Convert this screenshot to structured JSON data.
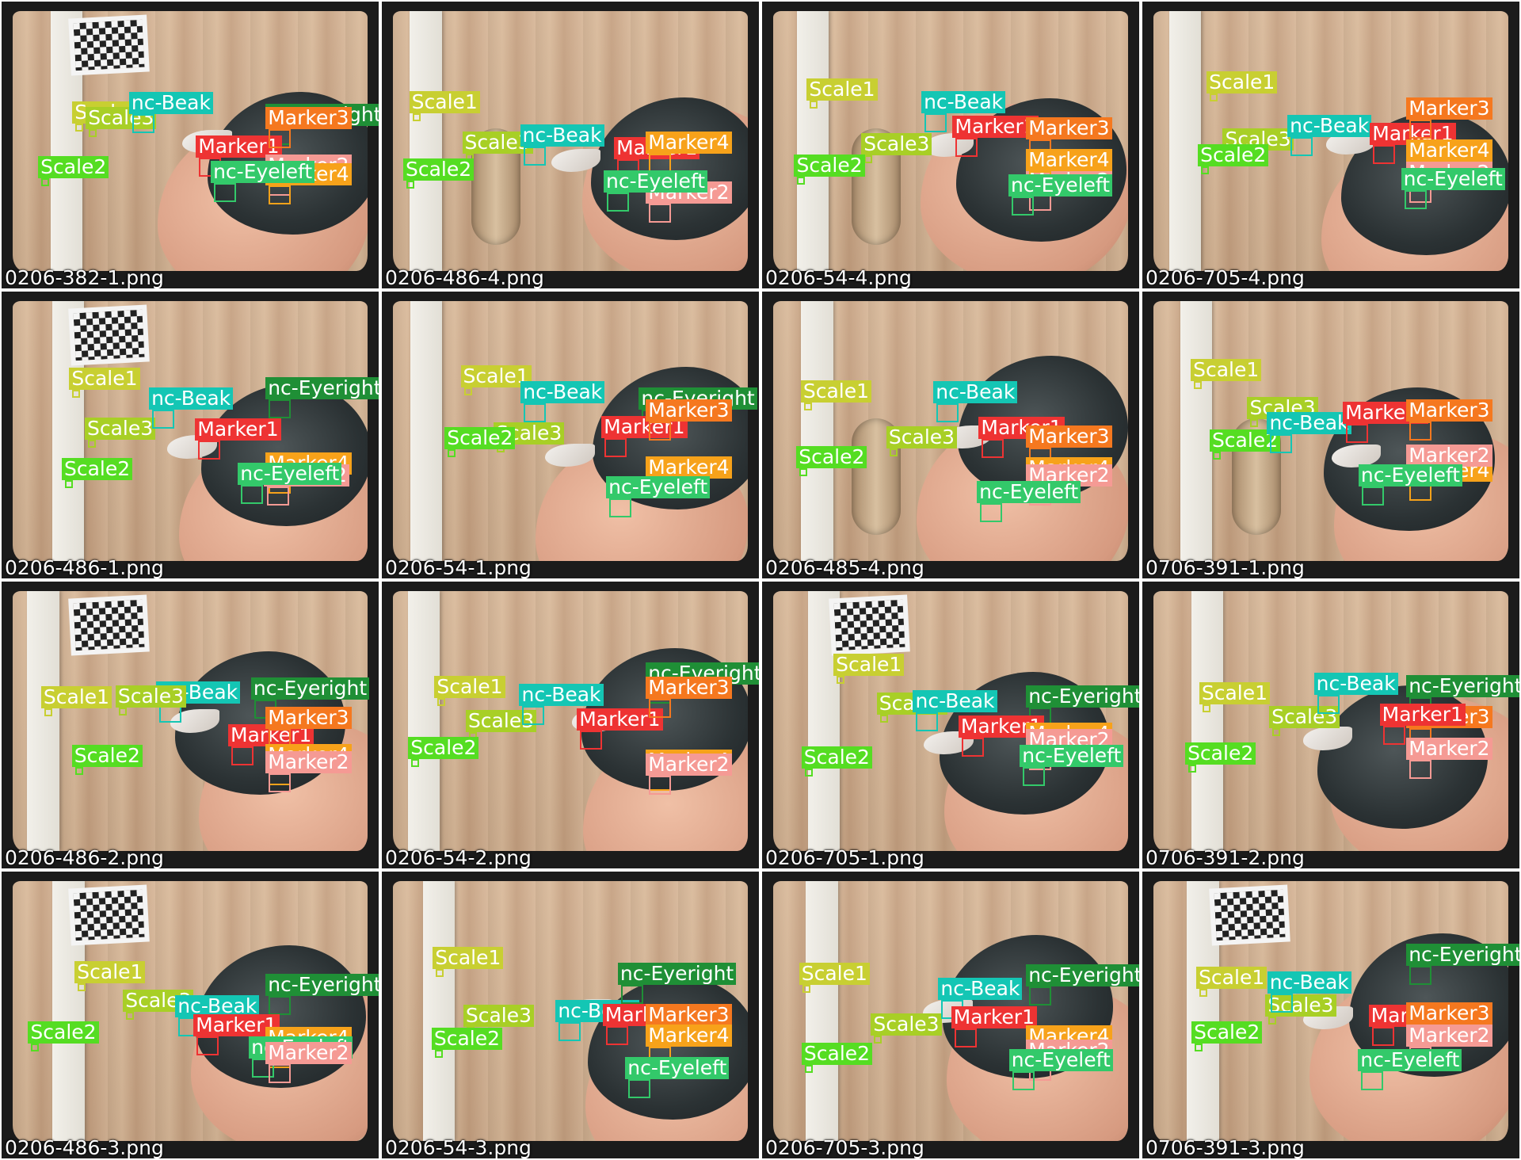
{
  "grid_title": "",
  "colors": {
    "Scale1": "#c8cf32",
    "Scale2": "#55dd22",
    "Scale3": "#a8cf26",
    "nc-Beak": "#14c6b4",
    "nc-Eyeright": "#1f8f36",
    "nc-Eyeleft": "#33c96a",
    "Marker1": "#ee3333",
    "Marker2": "#f59a94",
    "Marker3": "#f5781f",
    "Marker4": "#f7a21a"
  },
  "tiles": [
    {
      "filename": "0206-382-1.png",
      "labels": [
        "Scale1",
        "Scale3",
        "Scale2",
        "nc-Beak",
        "nc-Eyeright",
        "Marker1",
        "Marker3",
        "Marker2",
        "Marker4",
        "nc-Eyeleft"
      ]
    },
    {
      "filename": "0206-486-4.png",
      "labels": [
        "Scale1",
        "Scale3",
        "Scale2",
        "nc-Beak",
        "Marker1",
        "Marker4",
        "Marker2",
        "nc-Eyeleft"
      ]
    },
    {
      "filename": "0206-54-4.png",
      "labels": [
        "Scale1",
        "Scale3",
        "Scale2",
        "nc-Beak",
        "Marker1",
        "Marker3",
        "Marker2",
        "Marker4",
        "nc-Eyeleft"
      ]
    },
    {
      "filename": "0206-705-4.png",
      "labels": [
        "Scale1",
        "Scale3",
        "Scale2",
        "nc-Beak",
        "Marker1",
        "Marker3",
        "Marker4",
        "Marker2",
        "nc-Eyeleft"
      ]
    },
    {
      "filename": "0206-486-1.png",
      "labels": [
        "Scale1",
        "Scale3",
        "Scale2",
        "nc-Beak",
        "nc-Eyeright",
        "Marker1",
        "Marker4",
        "Marker2",
        "nc-Eyeleft"
      ]
    },
    {
      "filename": "0206-54-1.png",
      "labels": [
        "Scale1",
        "Scale3",
        "Scale2",
        "nc-Beak",
        "nc-Eyeright",
        "Marker1",
        "Marker3",
        "Marker4",
        "nc-Eyeleft"
      ]
    },
    {
      "filename": "0206-485-4.png",
      "labels": [
        "Scale1",
        "Scale3",
        "Scale2",
        "nc-Beak",
        "Marker1",
        "Marker3",
        "Marker4",
        "Marker2",
        "nc-Eyeleft"
      ]
    },
    {
      "filename": "0706-391-1.png",
      "labels": [
        "Scale1",
        "Scale3",
        "Scale2",
        "nc-Beak",
        "Marker1",
        "Marker3",
        "Marker4",
        "Marker2",
        "nc-Eyeleft"
      ]
    },
    {
      "filename": "0206-486-2.png",
      "labels": [
        "nc-Beak",
        "Scale1",
        "Scale3",
        "Scale2",
        "nc-Eyeright",
        "Marker1",
        "Marker3",
        "Marker4",
        "Marker2"
      ]
    },
    {
      "filename": "0206-54-2.png",
      "labels": [
        "Scale1",
        "Scale3",
        "Scale2",
        "nc-Beak",
        "nc-Eyeright",
        "Marker1",
        "Marker3",
        "Marker4",
        "Marker2"
      ]
    },
    {
      "filename": "0206-705-1.png",
      "labels": [
        "Scale1",
        "Scale3",
        "Scale2",
        "nc-Beak",
        "nc-Eyeright",
        "Marker1",
        "Marker4",
        "Marker2",
        "nc-Eyeleft"
      ]
    },
    {
      "filename": "0706-391-2.png",
      "labels": [
        "Scale1",
        "Scale3",
        "Scale2",
        "nc-Beak",
        "nc-Eyeright",
        "Marker3",
        "Marker1",
        "Marker2"
      ]
    },
    {
      "filename": "0206-486-3.png",
      "labels": [
        "Scale1",
        "Scale3",
        "Scale2",
        "nc-Beak",
        "nc-Eyeright",
        "Marker1",
        "Marker4",
        "nc-Eyeleft",
        "Marker2"
      ]
    },
    {
      "filename": "0206-54-3.png",
      "labels": [
        "Scale1",
        "Scale3",
        "Scale2",
        "nc-Beak",
        "nc-Eyeright",
        "Marker1",
        "Marker3",
        "Marker4",
        "nc-Eyeleft"
      ]
    },
    {
      "filename": "0206-705-3.png",
      "labels": [
        "Scale1",
        "Scale3",
        "Scale2",
        "nc-Beak",
        "nc-Eyeright",
        "Marker1",
        "Marker4",
        "Marker2",
        "nc-Eyeleft"
      ]
    },
    {
      "filename": "0706-391-3.png",
      "labels": [
        "Scale1",
        "Scale3",
        "Scale2",
        "nc-Beak",
        "nc-Eyeright",
        "Marker1",
        "Marker3",
        "Marker2",
        "nc-Eyeleft"
      ]
    }
  ]
}
